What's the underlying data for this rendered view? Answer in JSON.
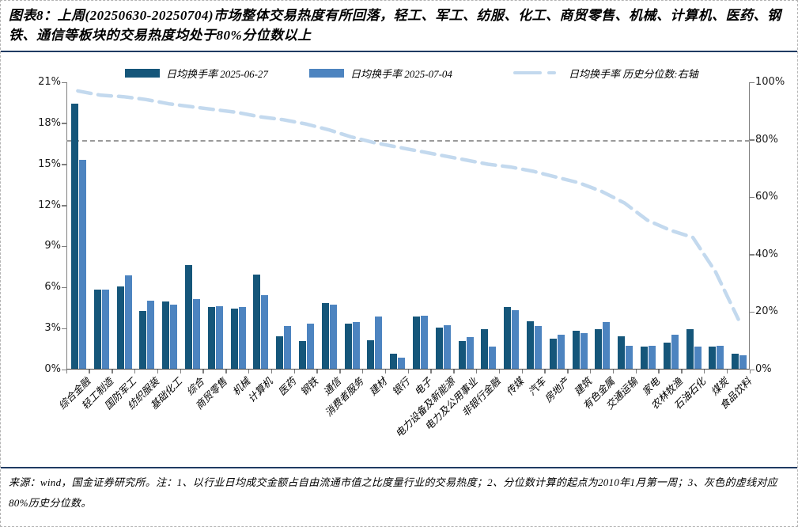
{
  "figure": {
    "title": "图表8：上周(20250630-20250704)市场整体交易热度有所回落，轻工、军工、纺服、化工、商贸零售、机械、计算机、医药、钢铁、通信等板块的交易热度均处于80%分位数以上",
    "footer_note": "来源：wind，国金证券研究所。注：1、以行业日均成交金额占自由流通市值之比度量行业的交易热度；2、分位数计算的起点为2010年1月第一周；3、灰色的虚线对应80%历史分位数。"
  },
  "legend": {
    "items": [
      {
        "label": "日均换手率 2025-06-27",
        "type": "bar",
        "color": "#15567a"
      },
      {
        "label": "日均换手率 2025-07-04",
        "type": "bar",
        "color": "#4d84c0"
      },
      {
        "label": "日均换手率 历史分位数:右轴",
        "type": "dashed-line",
        "color": "#c3d9ee"
      }
    ]
  },
  "chart_data": {
    "type": "bar",
    "categories": [
      "综合金融",
      "轻工制造",
      "国防军工",
      "纺织服装",
      "基础化工",
      "综合",
      "商贸零售",
      "机械",
      "计算机",
      "医药",
      "钢铁",
      "通信",
      "消费者服务",
      "建材",
      "银行",
      "电子",
      "电力设备及新能源",
      "电力及公用事业",
      "非银行金融",
      "传媒",
      "汽车",
      "房地产",
      "建筑",
      "有色金属",
      "交通运输",
      "家电",
      "农林牧渔",
      "石油石化",
      "煤炭",
      "食品饮料"
    ],
    "series": [
      {
        "name": "日均换手率 2025-06-27",
        "type": "bar",
        "axis": "left",
        "color": "#15567a",
        "values": [
          19.4,
          5.8,
          6.0,
          4.2,
          4.9,
          7.6,
          4.5,
          4.4,
          6.9,
          2.4,
          2.0,
          4.8,
          3.3,
          2.1,
          1.1,
          3.8,
          3.0,
          2.0,
          2.9,
          4.5,
          3.5,
          2.2,
          2.8,
          2.9,
          2.4,
          1.6,
          1.9,
          2.9,
          1.6,
          1.1
        ]
      },
      {
        "name": "日均换手率 2025-07-04",
        "type": "bar",
        "axis": "left",
        "color": "#4d84c0",
        "values": [
          15.3,
          5.8,
          6.8,
          5.0,
          4.7,
          5.1,
          4.6,
          4.5,
          5.4,
          3.1,
          3.3,
          4.7,
          3.4,
          3.8,
          0.8,
          3.9,
          3.2,
          2.3,
          1.6,
          4.3,
          3.1,
          2.5,
          2.6,
          3.4,
          1.7,
          1.7,
          2.5,
          1.6,
          1.7,
          1.0
        ]
      },
      {
        "name": "日均换手率 历史分位数:右轴",
        "type": "dashed-line",
        "axis": "right",
        "color": "#c3d9ee",
        "values": [
          97,
          95.5,
          95,
          94,
          92.5,
          91.5,
          90.5,
          89.5,
          88,
          87,
          85.5,
          83.5,
          81,
          79,
          77.5,
          76,
          74.5,
          73,
          71.5,
          70.5,
          69,
          67,
          65,
          62,
          58,
          52,
          48.5,
          46,
          34,
          17.5
        ]
      }
    ],
    "left_axis": {
      "tick_labels": [
        "0%",
        "3%",
        "6%",
        "9%",
        "12%",
        "15%",
        "18%",
        "21%"
      ],
      "min": 0,
      "max": 21
    },
    "right_axis": {
      "tick_labels": [
        "0%",
        "20%",
        "40%",
        "60%",
        "80%",
        "100%"
      ],
      "min": 0,
      "max": 100
    },
    "reference_line": {
      "axis": "right",
      "value": 80,
      "style": "dashed",
      "color": "#9a9a9a",
      "meaning": "80%历史分位数"
    },
    "legend_position": "top",
    "grid": false
  }
}
